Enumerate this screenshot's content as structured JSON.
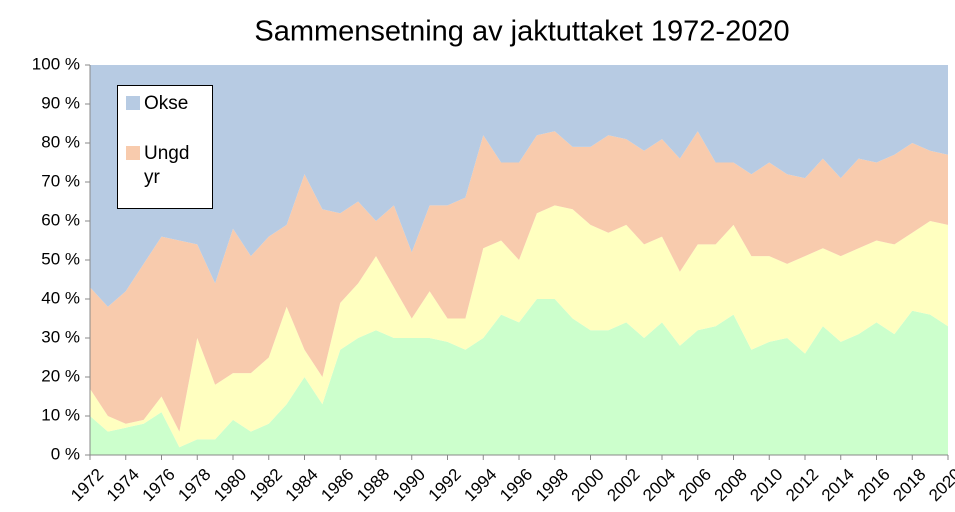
{
  "chart_data": {
    "type": "stacked_area_100",
    "title": "Sammensetning av jaktuttaket  1972-2020",
    "x": [
      1972,
      1973,
      1974,
      1975,
      1976,
      1977,
      1978,
      1979,
      1980,
      1981,
      1982,
      1983,
      1984,
      1985,
      1986,
      1987,
      1988,
      1989,
      1990,
      1991,
      1992,
      1993,
      1994,
      1995,
      1996,
      1997,
      1998,
      1999,
      2000,
      2001,
      2002,
      2003,
      2004,
      2005,
      2006,
      2007,
      2008,
      2009,
      2010,
      2011,
      2012,
      2013,
      2014,
      2015,
      2016,
      2017,
      2018,
      2019,
      2020
    ],
    "series": [
      {
        "color": "#ccffcc",
        "values": [
          10,
          6,
          7,
          8,
          11,
          2,
          4,
          4,
          9,
          6,
          8,
          13,
          20,
          13,
          27,
          30,
          32,
          30,
          30,
          30,
          29,
          27,
          30,
          36,
          34,
          40,
          40,
          35,
          32,
          32,
          34,
          30,
          34,
          28,
          32,
          33,
          36,
          27,
          29,
          30,
          26,
          33,
          29,
          31,
          34,
          31,
          37,
          36,
          33
        ]
      },
      {
        "color": "#ffffc0",
        "values": [
          7,
          4,
          1,
          1,
          4,
          4,
          26,
          14,
          12,
          15,
          17,
          25,
          7,
          7,
          12,
          14,
          19,
          13,
          5,
          12,
          6,
          8,
          23,
          19,
          16,
          22,
          24,
          28,
          27,
          25,
          25,
          24,
          22,
          19,
          22,
          21,
          23,
          24,
          22,
          19,
          25,
          20,
          22,
          22,
          21,
          23,
          20,
          24,
          26
        ]
      },
      {
        "name": "Ungd yr",
        "color": "#f8cbad",
        "values": [
          26,
          28,
          34,
          40,
          41,
          49,
          24,
          26,
          37,
          30,
          31,
          21,
          45,
          43,
          23,
          21,
          9,
          21,
          17,
          22,
          29,
          31,
          29,
          20,
          25,
          20,
          19,
          16,
          20,
          25,
          22,
          24,
          25,
          29,
          29,
          21,
          16,
          21,
          24,
          23,
          20,
          23,
          20,
          23,
          20,
          23,
          23,
          18,
          18
        ]
      },
      {
        "name": "Okse",
        "color": "#b7cbe3",
        "values": [
          57,
          62,
          58,
          51,
          44,
          45,
          46,
          56,
          42,
          49,
          44,
          41,
          28,
          37,
          38,
          35,
          40,
          36,
          48,
          36,
          36,
          34,
          18,
          25,
          25,
          18,
          17,
          21,
          21,
          18,
          19,
          22,
          19,
          24,
          17,
          25,
          25,
          28,
          25,
          28,
          29,
          24,
          29,
          24,
          25,
          23,
          20,
          22,
          23
        ]
      }
    ],
    "xlim": [
      1972,
      2020
    ],
    "xticks": [
      1972,
      1974,
      1976,
      1978,
      1980,
      1982,
      1984,
      1986,
      1988,
      1990,
      1992,
      1994,
      1996,
      1998,
      2000,
      2002,
      2004,
      2006,
      2008,
      2010,
      2012,
      2014,
      2016,
      2018,
      2020
    ],
    "ylim": [
      0,
      100
    ],
    "yticks": [
      {
        "value": 0,
        "label": "0 %"
      },
      {
        "value": 10,
        "label": "10 %"
      },
      {
        "value": 20,
        "label": "20 %"
      },
      {
        "value": 30,
        "label": "30 %"
      },
      {
        "value": 40,
        "label": "40 %"
      },
      {
        "value": 50,
        "label": "50 %"
      },
      {
        "value": 60,
        "label": "60 %"
      },
      {
        "value": 70,
        "label": "70 %"
      },
      {
        "value": 80,
        "label": "80 %"
      },
      {
        "value": 90,
        "label": "90 %"
      },
      {
        "value": 100,
        "label": "100 %"
      }
    ],
    "legend": "top-left"
  }
}
